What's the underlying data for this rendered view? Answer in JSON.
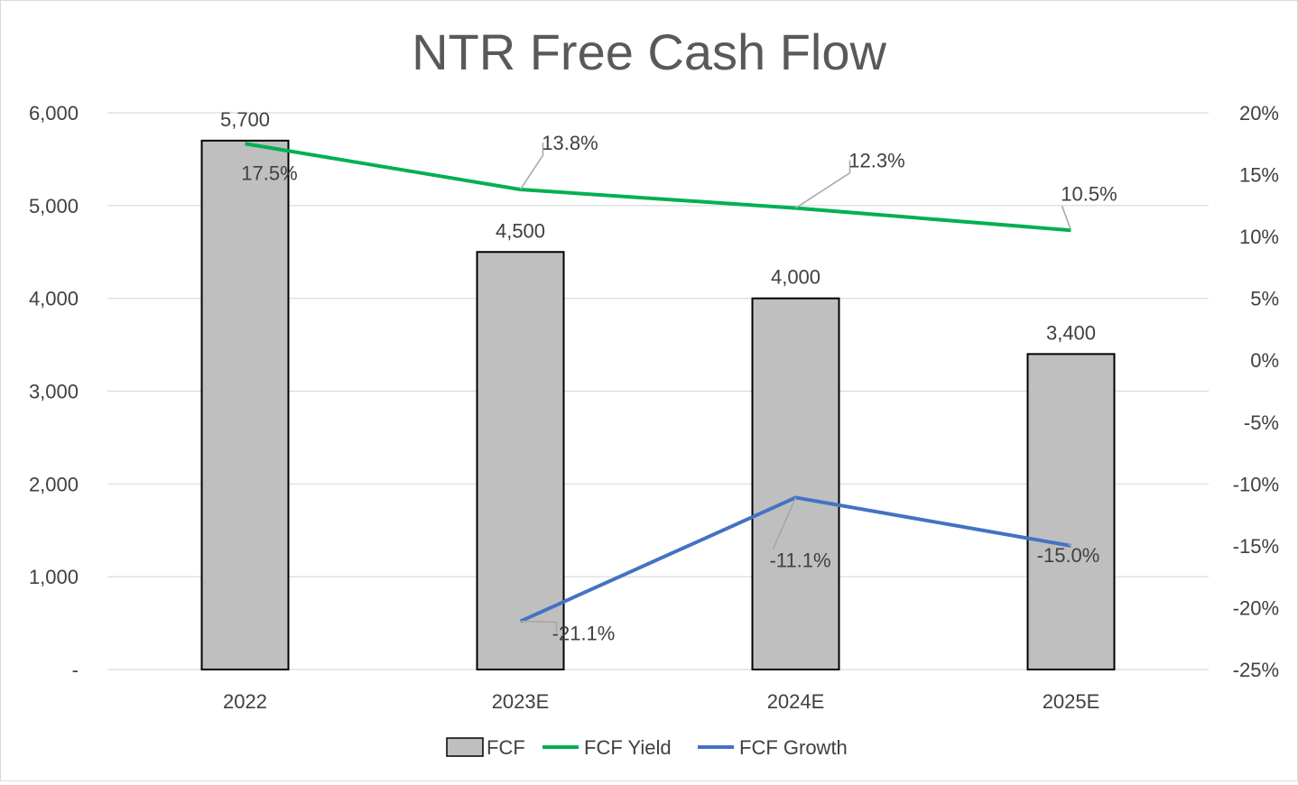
{
  "chart_data": {
    "type": "bar",
    "title": "NTR Free Cash Flow",
    "categories": [
      "2022",
      "2023E",
      "2024E",
      "2025E"
    ],
    "series": [
      {
        "name": "FCF",
        "type": "bar",
        "axis": "left",
        "values": [
          5700,
          4500,
          4000,
          3400
        ],
        "data_labels": [
          "5,700",
          "4,500",
          "4,000",
          "3,400"
        ]
      },
      {
        "name": "FCF Yield",
        "type": "line",
        "axis": "right",
        "values": [
          17.5,
          13.8,
          12.3,
          10.5
        ],
        "data_labels": [
          "17.5%",
          "13.8%",
          "12.3%",
          "10.5%"
        ]
      },
      {
        "name": "FCF Growth",
        "type": "line",
        "axis": "right",
        "values": [
          null,
          -21.1,
          -11.1,
          -15.0
        ],
        "data_labels": [
          null,
          "-21.1%",
          "-11.1%",
          "-15.0%"
        ]
      }
    ],
    "y_left": {
      "ylim": [
        0,
        6000
      ],
      "ticks": [
        0,
        1000,
        2000,
        3000,
        4000,
        5000,
        6000
      ],
      "tick_labels": [
        "-",
        "1,000",
        "2,000",
        "3,000",
        "4,000",
        "5,000",
        "6,000"
      ]
    },
    "y_right": {
      "ylim": [
        -25,
        20
      ],
      "ticks": [
        -25,
        -20,
        -15,
        -10,
        -5,
        0,
        5,
        10,
        15,
        20
      ],
      "tick_labels": [
        "-25%",
        "-20%",
        "-15%",
        "-10%",
        "-5%",
        "0%",
        "5%",
        "10%",
        "15%",
        "20%"
      ]
    },
    "xlabel": "",
    "ylabel": "",
    "grid": true,
    "legend_position": "bottom",
    "colors": {
      "bar_fill": "#bfbfbf",
      "bar_stroke": "#000000",
      "yield_line": "#00b050",
      "growth_line": "#4472c4",
      "grid": "#d9d9d9",
      "text": "#404040",
      "title": "#595959"
    }
  }
}
